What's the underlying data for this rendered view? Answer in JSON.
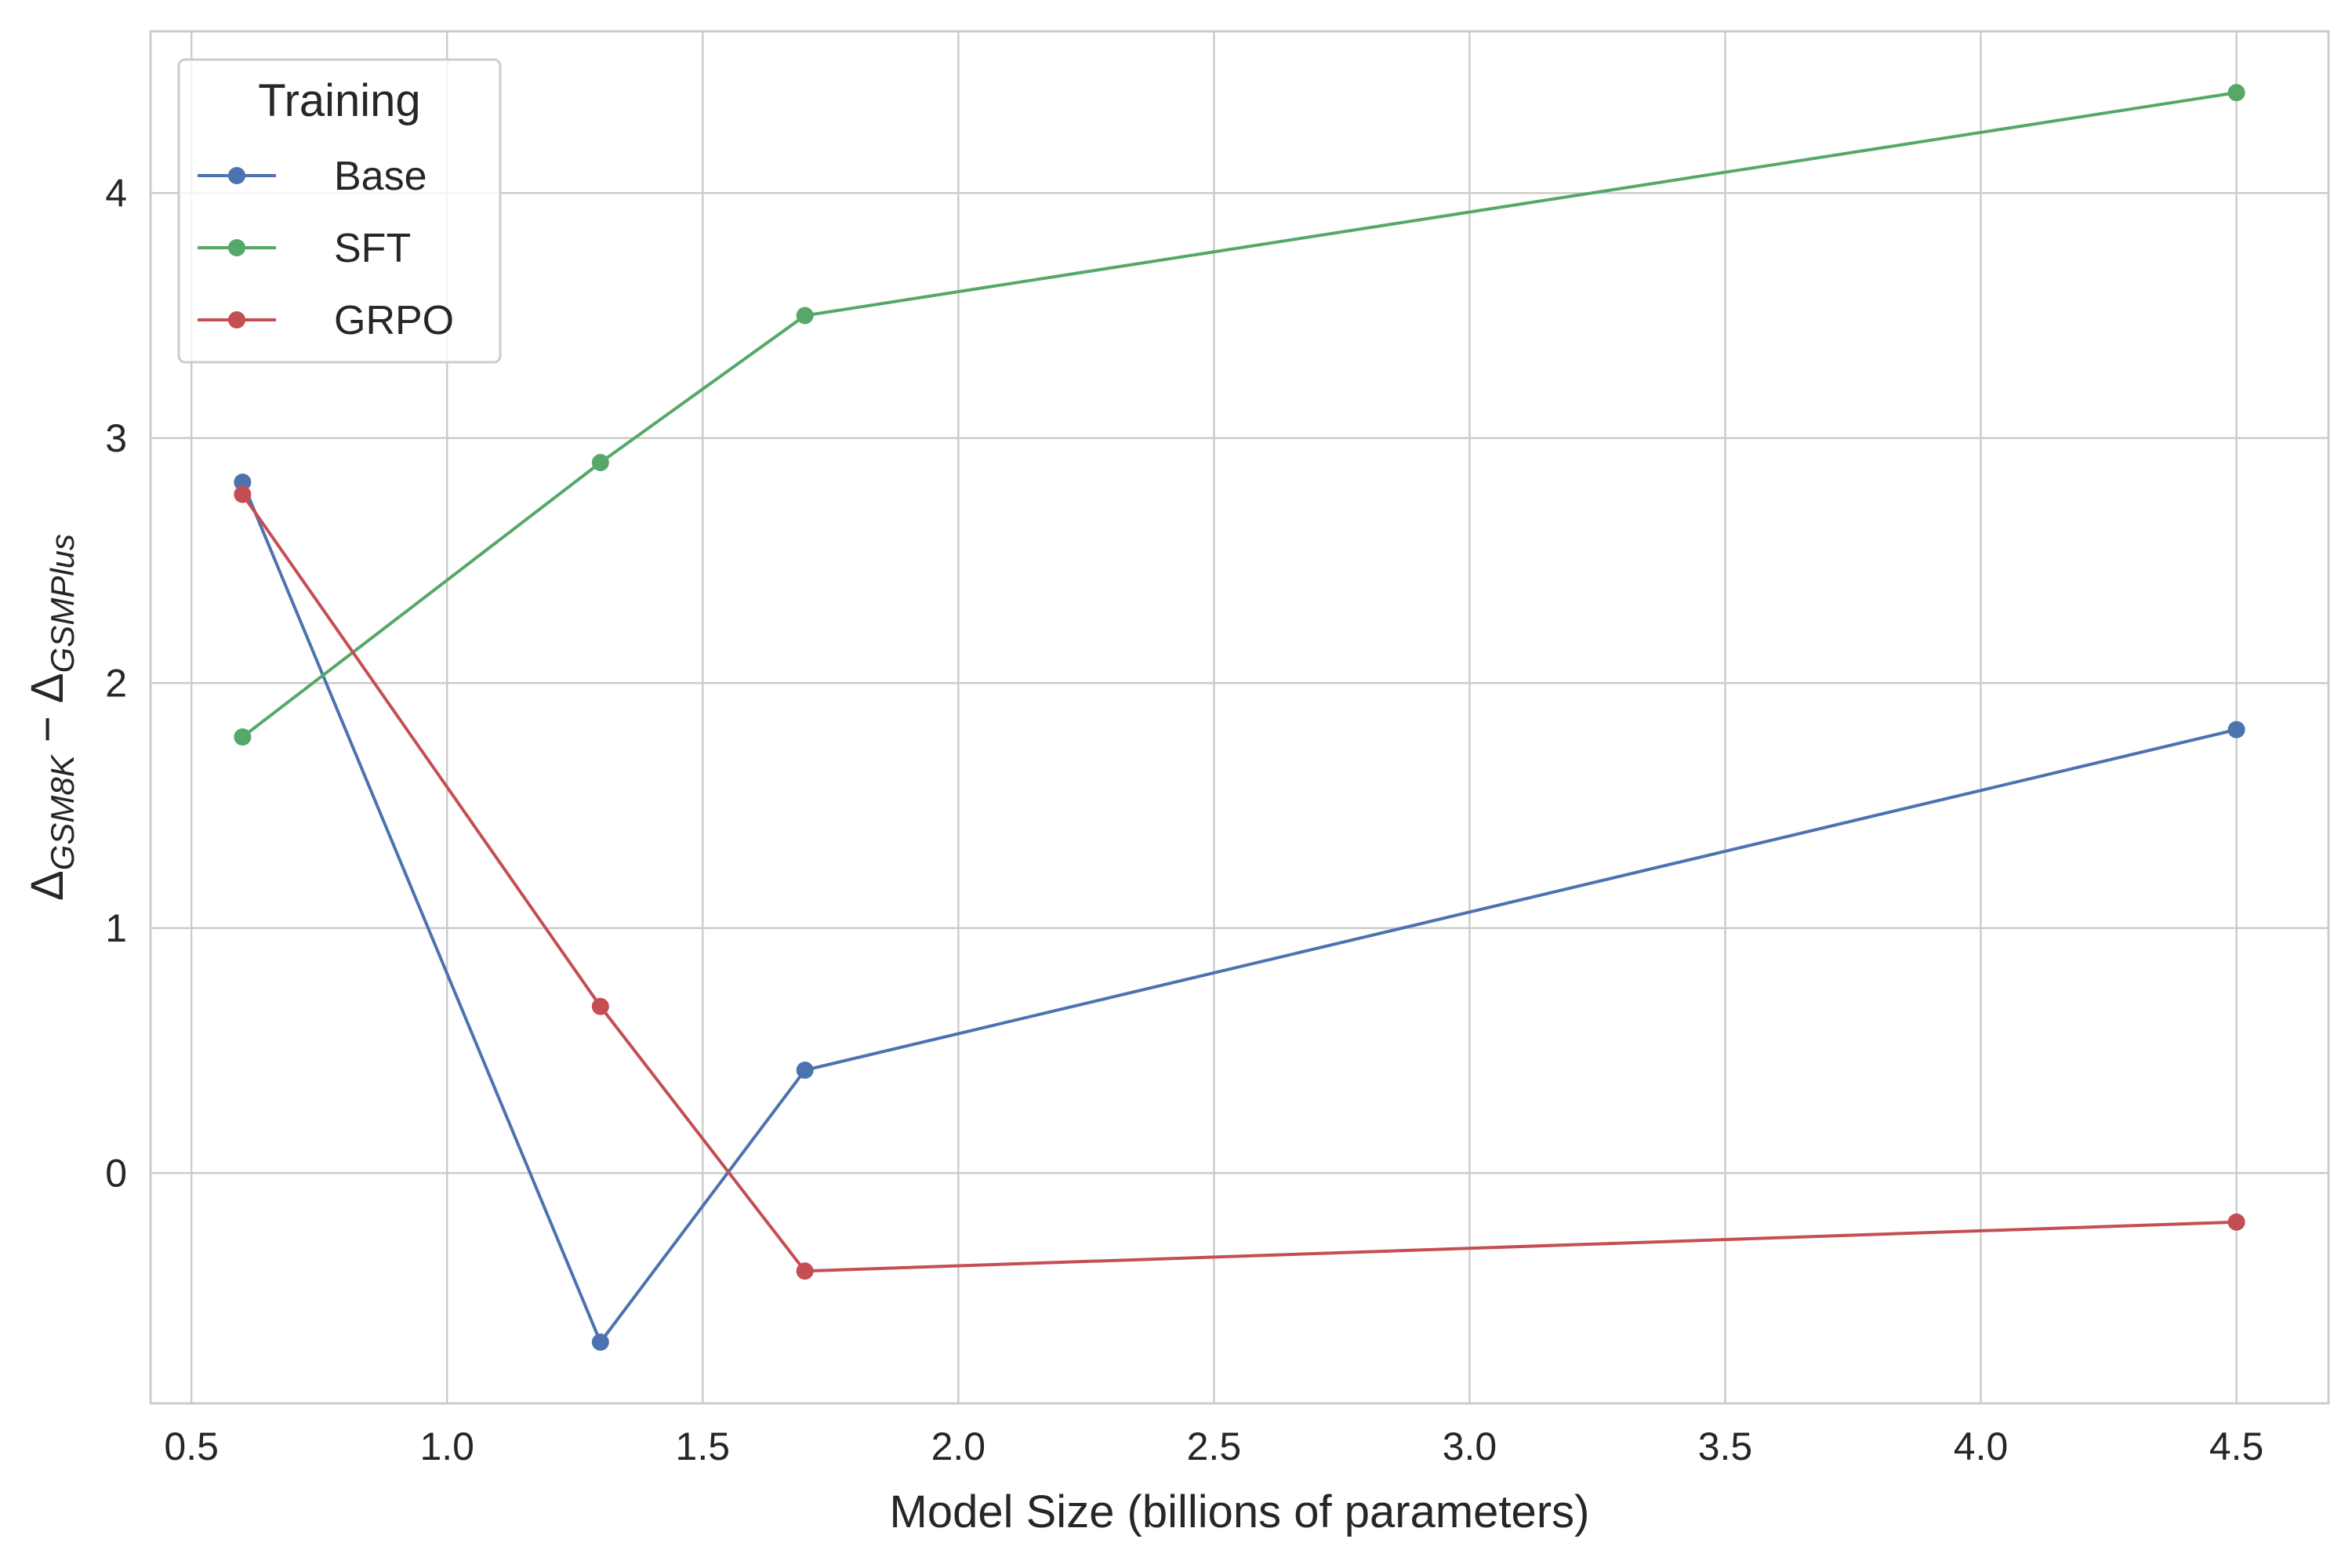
{
  "chart_data": {
    "type": "line",
    "xlabel": "Model Size (billions of parameters)",
    "ylabel": {
      "main_left": "Δ",
      "sub_left": "GSM8K",
      "operator": " − ",
      "main_right": "Δ",
      "sub_right": "GSMPlus"
    },
    "xlim": [
      0.42,
      4.68
    ],
    "ylim": [
      -0.94,
      4.66
    ],
    "xticks": [
      0.5,
      1.0,
      1.5,
      2.0,
      2.5,
      3.0,
      3.5,
      4.0,
      4.5
    ],
    "xtick_labels": [
      "0.5",
      "1.0",
      "1.5",
      "2.0",
      "2.5",
      "3.0",
      "3.5",
      "4.0",
      "4.5"
    ],
    "yticks": [
      0,
      1,
      2,
      3,
      4
    ],
    "ytick_labels": [
      "0",
      "1",
      "2",
      "3",
      "4"
    ],
    "grid": true,
    "legend": {
      "title": "Training",
      "position": "top-left"
    },
    "x": [
      0.6,
      1.3,
      1.7,
      4.5
    ],
    "series": [
      {
        "name": "Base",
        "color": "#4c72b0",
        "values": [
          2.82,
          -0.69,
          0.42,
          1.81
        ]
      },
      {
        "name": "SFT",
        "color": "#55a868",
        "values": [
          1.78,
          2.9,
          3.5,
          4.41
        ]
      },
      {
        "name": "GRPO",
        "color": "#c44e52",
        "values": [
          2.77,
          0.68,
          -0.4,
          -0.2
        ]
      }
    ]
  }
}
